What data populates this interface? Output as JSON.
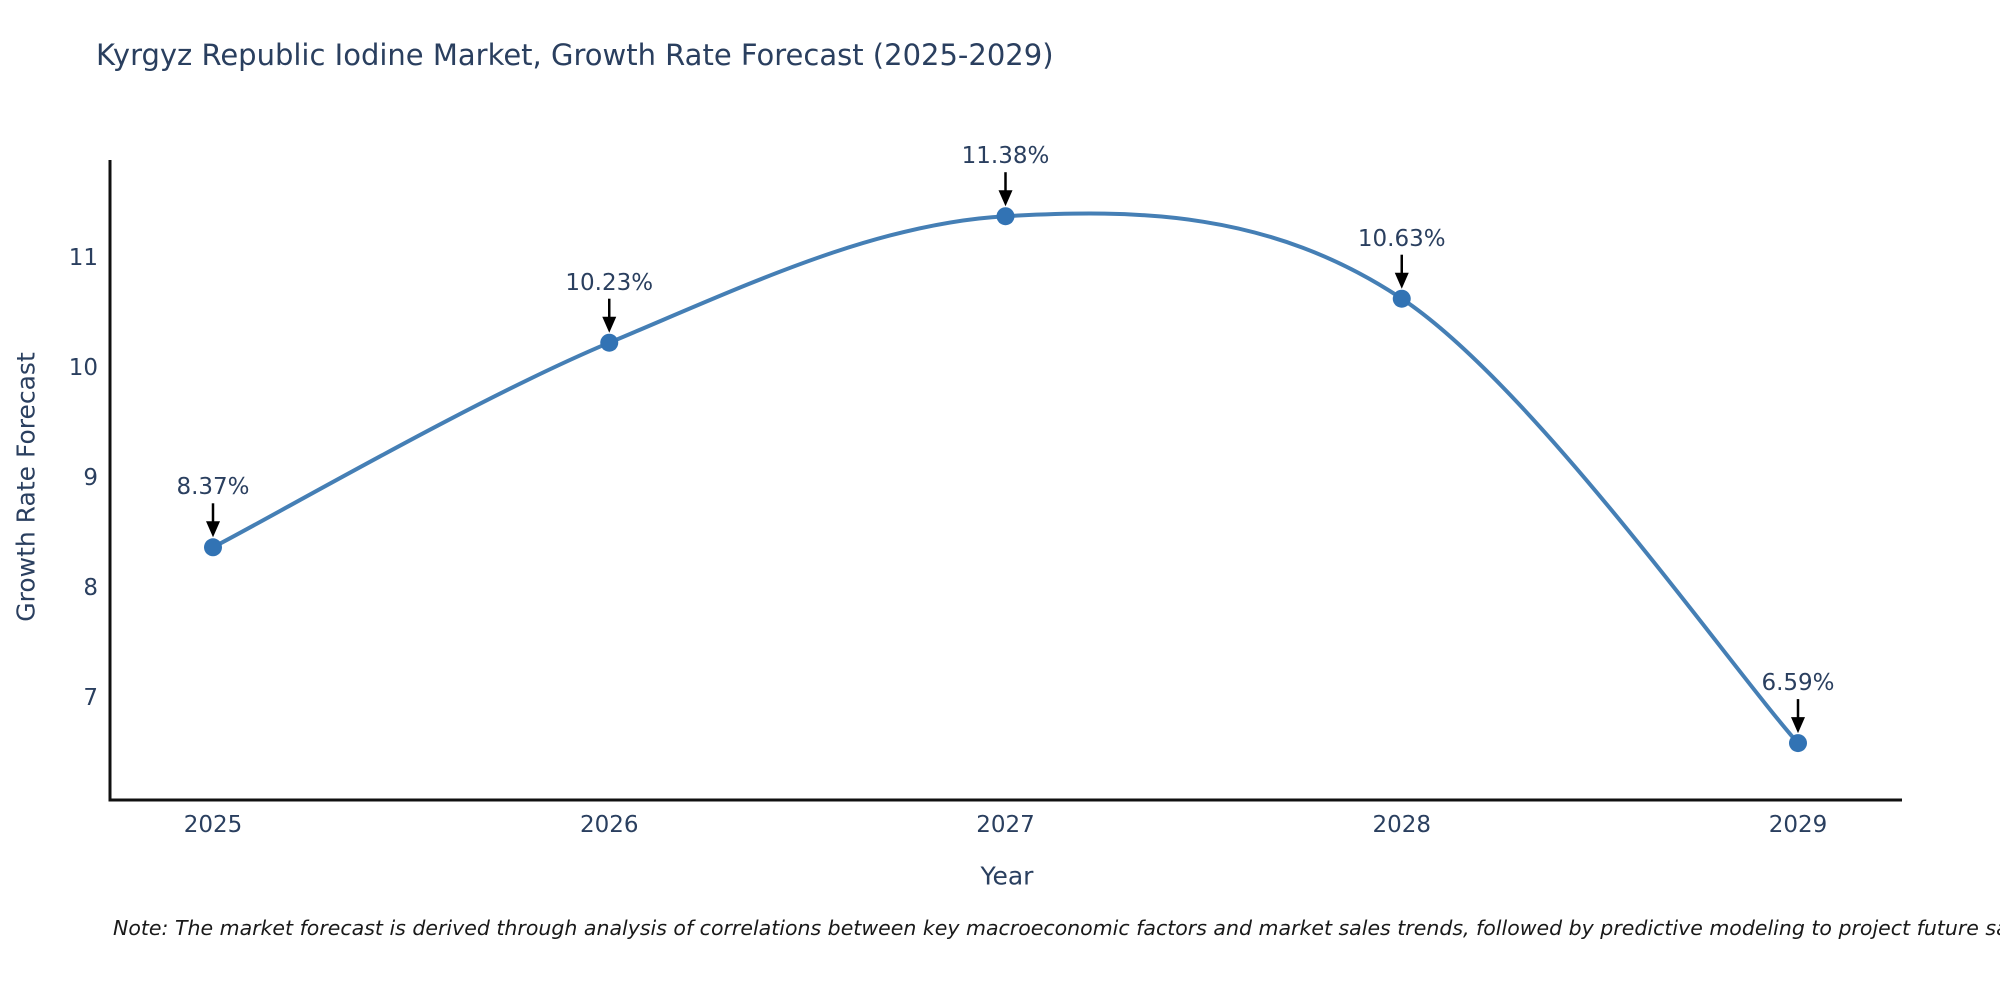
{
  "title": "Kyrgyz Republic Iodine Market, Growth Rate Forecast (2025-2029)",
  "chart_data": {
    "type": "line",
    "curve": "spline",
    "x": [
      "2025",
      "2026",
      "2027",
      "2028",
      "2029"
    ],
    "values": [
      8.37,
      10.23,
      11.38,
      10.63,
      6.59
    ],
    "point_labels": [
      "8.37%",
      "10.23%",
      "11.38%",
      "10.63%",
      "6.59%"
    ],
    "title": "Kyrgyz Republic Iodine Market, Growth Rate Forecast (2025-2029)",
    "xlabel": "Year",
    "ylabel": "Growth Rate Forecast",
    "yticks": [
      7,
      8,
      9,
      10,
      11
    ],
    "ylim": [
      6.07,
      11.89
    ],
    "grid": false,
    "legend": false,
    "line_color": "#457fb5",
    "marker_color": "#3273b4",
    "axis_line_color": "#111111",
    "annotation_arrow_color": "#000000",
    "text_color": "#2a3f5f"
  },
  "note": "Note: The market forecast is derived through analysis of correlations between key macroeconomic factors and market sales trends, followed by predictive modeling to project future sales"
}
